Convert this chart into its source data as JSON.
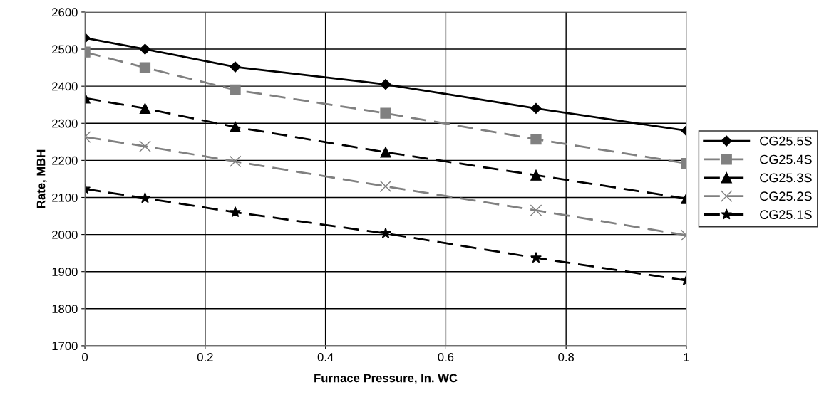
{
  "chart_data": {
    "type": "line",
    "xlabel": "Furnace Pressure, In. WC",
    "ylabel": "Rate, MBH",
    "x": [
      0,
      0.1,
      0.25,
      0.5,
      0.75,
      1
    ],
    "xlim": [
      0,
      1
    ],
    "xticks": [
      0,
      0.2,
      0.4,
      0.6,
      0.8,
      1
    ],
    "ylim": [
      1700,
      2600
    ],
    "yticks": [
      1700,
      1800,
      1900,
      2000,
      2100,
      2200,
      2300,
      2400,
      2500,
      2600
    ],
    "grid": true,
    "legend": "right",
    "series": [
      {
        "name": "CG25.5S",
        "color": "#000000",
        "marker": "diamond",
        "line_style": "solid",
        "values": [
          2530,
          2500,
          2452,
          2405,
          2340,
          2280
        ]
      },
      {
        "name": "CG25.4S",
        "color": "#808080",
        "marker": "square",
        "line_style": "dashed",
        "values": [
          2492,
          2450,
          2390,
          2327,
          2257,
          2192
        ]
      },
      {
        "name": "CG25.3S",
        "color": "#000000",
        "marker": "triangle",
        "line_style": "dashed",
        "values": [
          2368,
          2340,
          2290,
          2222,
          2160,
          2097
        ]
      },
      {
        "name": "CG25.2S",
        "color": "#808080",
        "marker": "cross",
        "line_style": "dashed",
        "values": [
          2263,
          2238,
          2197,
          2130,
          2065,
          1998
        ]
      },
      {
        "name": "CG25.1S",
        "color": "#000000",
        "marker": "star",
        "line_style": "dashed",
        "values": [
          2123,
          2098,
          2060,
          2003,
          1937,
          1876
        ]
      }
    ]
  }
}
